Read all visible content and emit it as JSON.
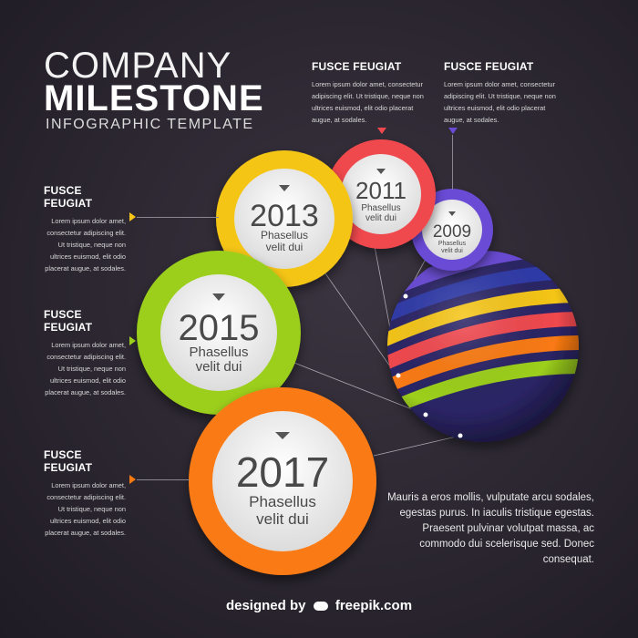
{
  "title": {
    "line1": "COMPANY",
    "line2": "MILESTONE",
    "line3": "INFOGRAPHIC TEMPLATE"
  },
  "callouts": [
    {
      "heading": "FUSCE FEUGIAT",
      "text": "Lorem ipsum dolor amet, consectetur adipiscing elit. Ut tristique, neque non ultrices euismod, elit odio placerat augue, at sodales."
    },
    {
      "heading": "FUSCE FEUGIAT",
      "text": "Lorem ipsum dolor amet, consectetur adipiscing elit. Ut tristique, neque non ultrices euismod, elit odio placerat augue, at sodales."
    },
    {
      "heading": "FUSCE FEUGIAT",
      "text": "Lorem ipsum dolor amet, consectetur adipiscing elit. Ut tristique, neque non ultrices euismod, elit odio placerat augue, at sodales."
    },
    {
      "heading": "FUSCE FEUGIAT",
      "text": "Lorem ipsum dolor amet, consectetur adipiscing elit. Ut tristique, neque non ultrices euismod, elit odio placerat augue, at sodales."
    },
    {
      "heading": "FUSCE FEUGIAT",
      "text": "Lorem ipsum dolor amet, consectetur adipiscing elit. Ut tristique, neque non ultrices euismod, elit odio placerat augue, at sodales."
    }
  ],
  "milestones": [
    {
      "year": "2009",
      "line1": "Phasellus",
      "line2": "velit dui",
      "color": "#6a4bd6"
    },
    {
      "year": "2011",
      "line1": "Phasellus",
      "line2": "velit dui",
      "color": "#f0484e"
    },
    {
      "year": "2013",
      "line1": "Phasellus",
      "line2": "velit dui",
      "color": "#f5c518"
    },
    {
      "year": "2015",
      "line1": "Phasellus",
      "line2": "velit dui",
      "color": "#9ccf1c"
    },
    {
      "year": "2017",
      "line1": "Phasellus",
      "line2": "velit dui",
      "color": "#fa7a12"
    }
  ],
  "body_text": "Mauris a eros mollis, vulputate arcu sodales, egestas purus. In iaculis tristique egestas. Praesent pulvinar volutpat massa, ac commodo dui scelerisque sed. Donec consequat.",
  "credit": {
    "prefix": "designed by",
    "brand": "freepik.com"
  },
  "sphere_colors": [
    "#f5c518",
    "#f0484e",
    "#fa7a12",
    "#9ccf1c",
    "#6a4bd6",
    "#2f3aa8"
  ]
}
